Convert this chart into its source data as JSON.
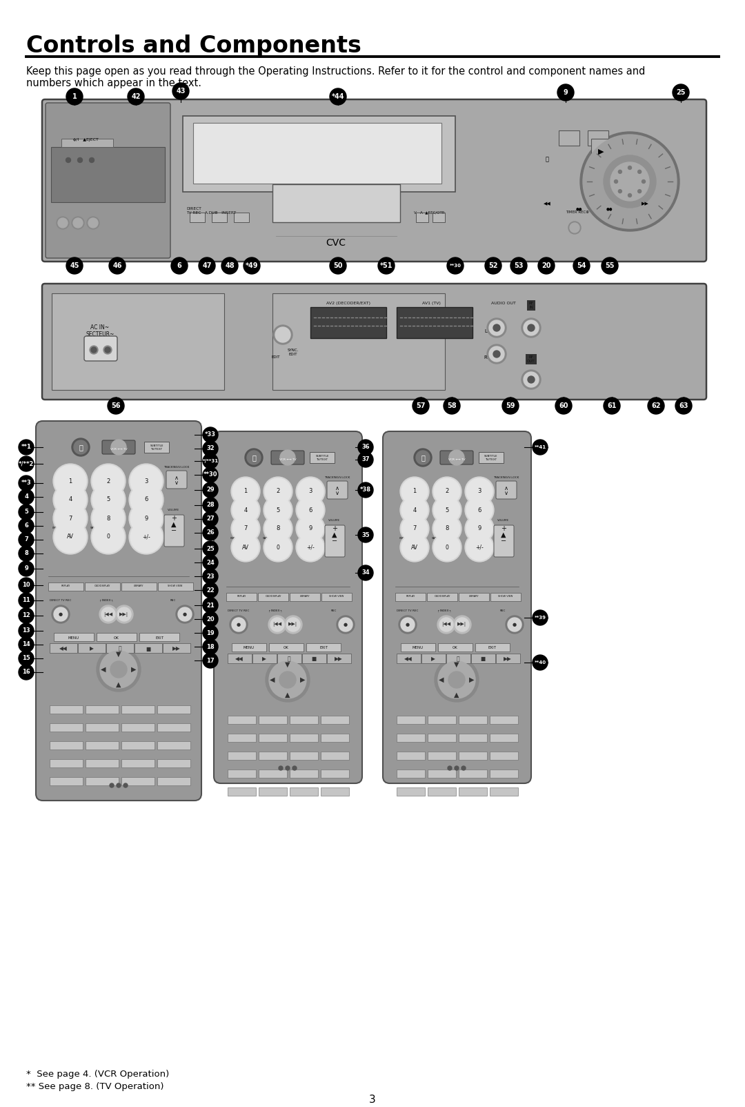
{
  "title": "Controls and Components",
  "body_text_line1": "Keep this page open as you read through the Operating Instructions. Refer to it for the control and component names and",
  "body_text_line2": "numbers which appear in the text.",
  "footnote1": "*  See page 4. (VCR Operation)",
  "footnote2": "** See page 8. (TV Operation)",
  "page_number": "3",
  "bg_color": "#ffffff",
  "title_fontsize": 24,
  "body_fontsize": 10.5,
  "footnote_fontsize": 9.5,
  "page_num_fontsize": 11,
  "vcr_gray": "#a8a8a8",
  "vcr_dark": "#787878",
  "vcr_light": "#c8c8c8",
  "vcr_white": "#e8e8e8",
  "remote_gray": "#989898",
  "remote_dark": "#686868",
  "remote_light": "#b8b8b8",
  "remote_btn": "#d8d8d8",
  "label_bg": "#000000",
  "label_fg": "#ffffff"
}
